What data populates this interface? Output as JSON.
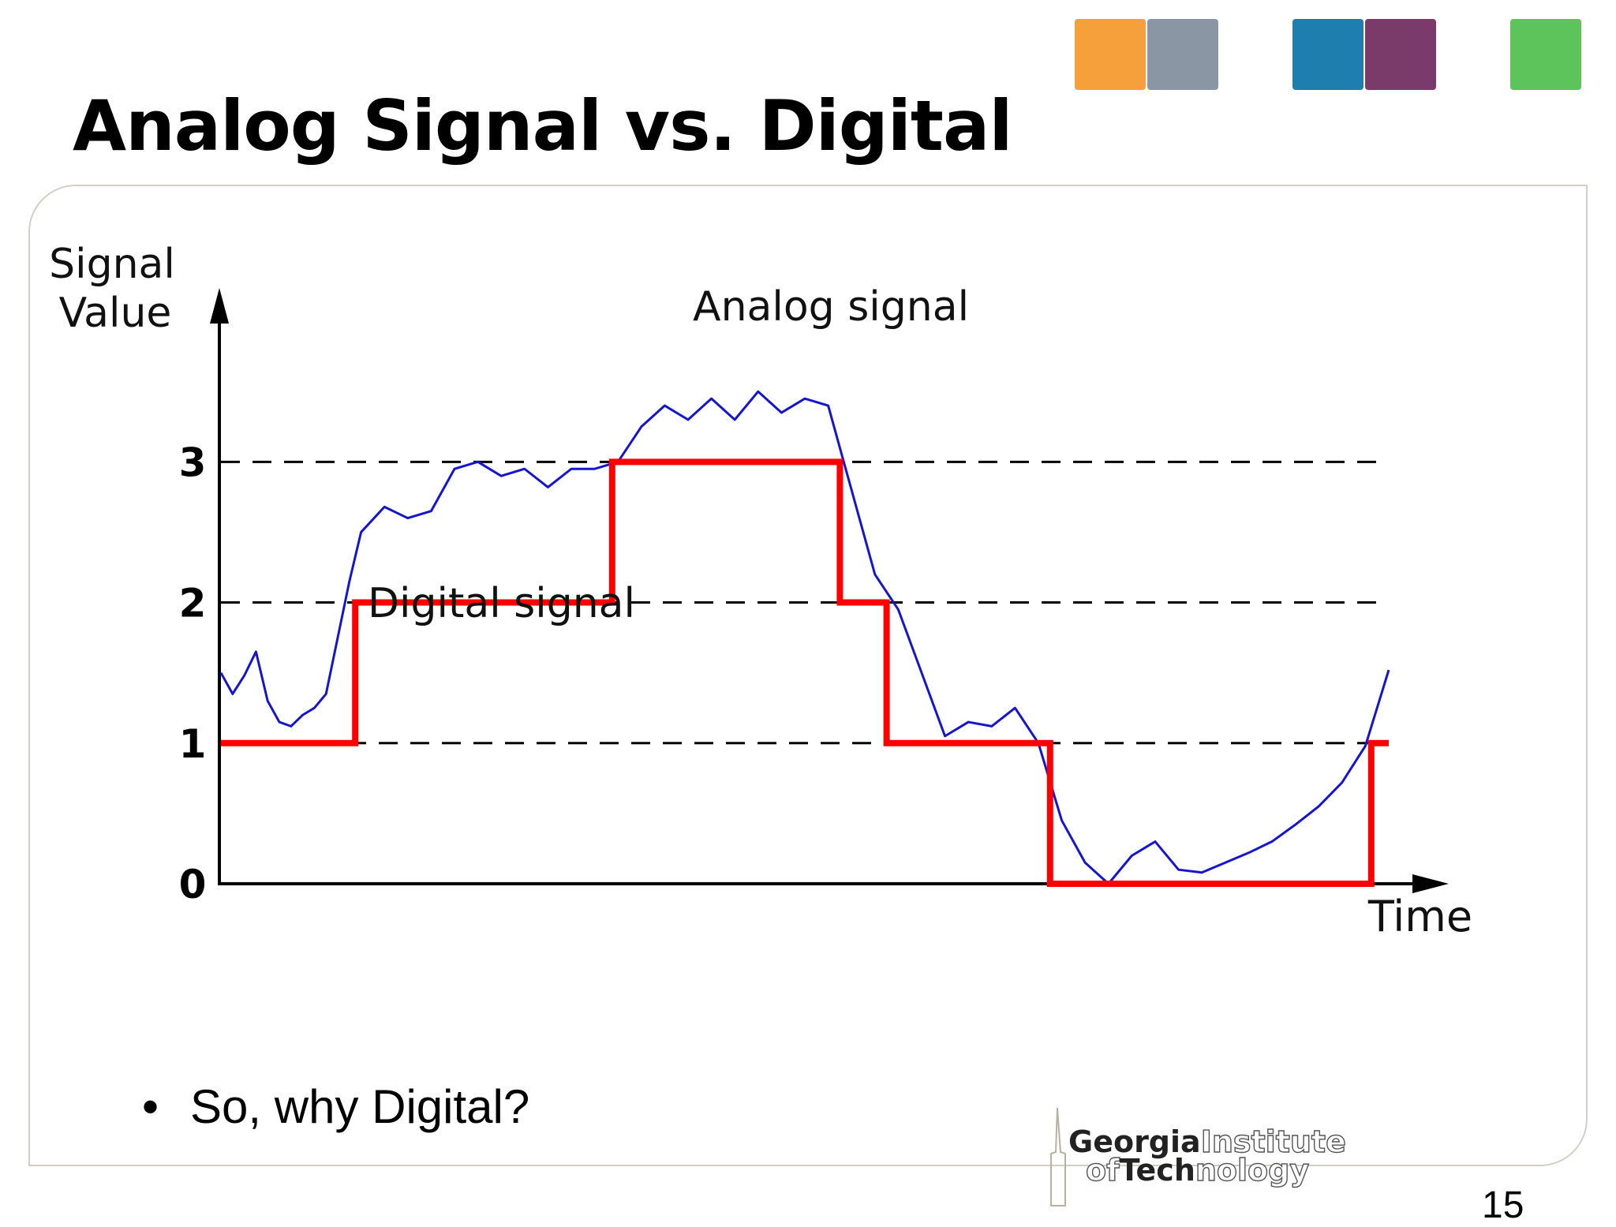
{
  "slide": {
    "title": "Analog Signal vs. Digital",
    "bullet": "So, why Digital?",
    "page_number": "15"
  },
  "logo": {
    "line1_bold": "Georgia",
    "line1_outline": "Institute",
    "line2_outline_a": "of",
    "line2_bold": "Tech",
    "line2_outline_b": "nology"
  },
  "header_tiles": [
    {
      "name": "orange-tile",
      "color": "#f5a03a"
    },
    {
      "name": "campus-photo-tile",
      "color": "#8a96a4"
    },
    {
      "name": "blue-tile",
      "color": "#1e7fae"
    },
    {
      "name": "circuit-photo-tile",
      "color": "#7a3a6a"
    },
    {
      "name": "green-tile",
      "color": "#5cc45a"
    }
  ],
  "chart_data": {
    "type": "line",
    "ylabel_line1": "Signal",
    "ylabel_line2": "Value",
    "xlabel": "Time",
    "y_ticks": [
      "0",
      "1",
      "2",
      "3"
    ],
    "ylim": [
      0,
      4.5
    ],
    "xlim": [
      0,
      100
    ],
    "reference_lines": [
      1,
      2,
      3
    ],
    "colors": {
      "analog": "#1515d0",
      "digital": "#ff0000",
      "axis": "#000000"
    },
    "series": [
      {
        "name": "Analog signal",
        "x": [
          0,
          1,
          2,
          3,
          4,
          5,
          6,
          7,
          8,
          9,
          10,
          11,
          12,
          14,
          16,
          18,
          20,
          22,
          24,
          26,
          28,
          30,
          32,
          34,
          36,
          38,
          40,
          42,
          44,
          46,
          48,
          50,
          52,
          54,
          56,
          58,
          60,
          62,
          64,
          66,
          68,
          70,
          72,
          74,
          76,
          78,
          80,
          82,
          84,
          86,
          88,
          90,
          92,
          94,
          96,
          98,
          100
        ],
        "y": [
          1.5,
          1.35,
          1.48,
          1.65,
          1.3,
          1.15,
          1.12,
          1.2,
          1.25,
          1.35,
          1.75,
          2.15,
          2.5,
          2.68,
          2.6,
          2.65,
          2.95,
          3.0,
          2.9,
          2.95,
          2.82,
          2.95,
          2.95,
          3.0,
          3.25,
          3.4,
          3.3,
          3.45,
          3.3,
          3.5,
          3.35,
          3.45,
          3.4,
          2.8,
          2.2,
          1.95,
          1.5,
          1.05,
          1.15,
          1.12,
          1.25,
          1.0,
          0.45,
          0.15,
          0.0,
          0.2,
          0.3,
          0.1,
          0.08,
          0.15,
          0.22,
          0.3,
          0.42,
          0.55,
          0.72,
          0.98,
          1.52
        ]
      },
      {
        "name": "Digital signal",
        "x": [
          0,
          11.5,
          11.5,
          33.5,
          33.5,
          53,
          53,
          57,
          57,
          71,
          71,
          98.5,
          98.5,
          100
        ],
        "y": [
          1,
          1,
          2,
          2,
          3,
          3,
          2,
          2,
          1,
          1,
          0,
          0,
          1,
          1
        ]
      }
    ]
  }
}
